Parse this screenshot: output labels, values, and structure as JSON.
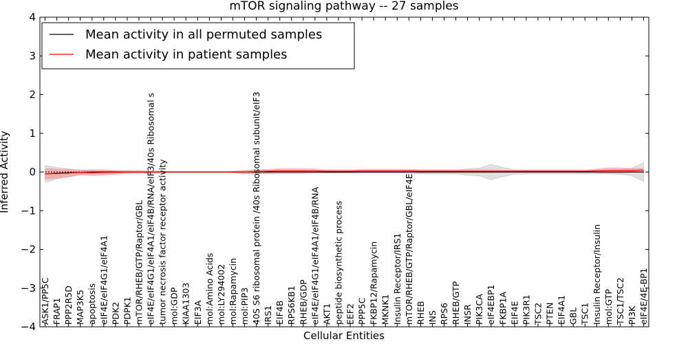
{
  "chart_data": {
    "type": "line",
    "title": "mTOR signaling pathway -- 27 samples",
    "xlabel": "Cellular Entities",
    "ylabel": "Inferred Activity",
    "ylim": [
      -4,
      4
    ],
    "yticks": [
      -4,
      -3,
      -2,
      -1,
      0,
      1,
      2,
      3,
      4
    ],
    "ytick_labels": [
      "−4",
      "−3",
      "−2",
      "−1",
      "0",
      "1",
      "2",
      "3",
      "4"
    ],
    "grid": false,
    "legend_position": "top-left",
    "categories": [
      "ASK1/PP5C",
      "FRAP1",
      "PPP2R5D",
      "MAP3K5",
      "apoptosis",
      "eIF4E/eIF4G1/eIF4A1",
      "PDK2",
      "PDPK1",
      "mTOR/RHEB/GTP/Raptor/GBL",
      "eIF4E/eIF4G1/eIF4A1/eIF4B/RNA/eIF3/40s Ribosomal s",
      "tumor necrosis factor receptor activity",
      "mol:GDP",
      "KIAA1303",
      "EIF3A",
      "mol:Amino Acids",
      "mol:LY294002",
      "mol:Rapamycin",
      "mol:PIP3",
      "40S S6 ribosomal protein /40s Ribosomal subunit/eIF3",
      "IRS1",
      "EIF4B",
      "RPS6KB1",
      "RHEB/GDP",
      "eIF4E/eIF4G1/eIF4A1/eIF4B/RNA",
      "AKT1",
      "peptide biosynthetic process",
      "EEF2",
      "PPP5C",
      "FKBP12/Rapamycin",
      "MKNK1",
      "Insulin Receptor/IRS1",
      "mTOR/RHEB/GTP/Raptor/GBL/eIF4E",
      "RHEB",
      "INS",
      "RPS6",
      "RHEB/GTP",
      "INSR",
      "PIK3CA",
      "eIF4EBP1",
      "FKBP1A",
      "EIF4E",
      "PIK3R1",
      "TSC2",
      "PTEN",
      "EIF4A1",
      "GBL",
      "TSC1",
      "Insulin Receptor/Insulin",
      "mol:GTP",
      "TSC1/TSC2",
      "PI3K",
      "eIF4E/4E-BP1"
    ],
    "series": [
      {
        "name": "Mean activity in all permuted samples",
        "color": "#000000",
        "band_color": "#999999",
        "values": [
          -0.05,
          -0.03,
          -0.02,
          -0.01,
          0,
          0,
          0,
          0,
          0,
          0,
          0,
          0,
          0,
          0,
          0,
          0,
          0,
          0,
          0,
          0,
          0,
          0,
          0,
          0,
          0,
          0,
          0,
          0,
          0,
          0,
          0,
          0,
          0,
          0,
          0,
          0,
          0,
          0,
          0,
          0,
          0,
          0,
          0,
          0,
          0,
          0,
          0,
          0,
          0,
          0,
          0,
          0
        ],
        "band": [
          0.22,
          0.15,
          0.1,
          0.06,
          0.04,
          0.03,
          0.02,
          0.02,
          0.01,
          0.01,
          0.01,
          0.01,
          0.01,
          0.01,
          0.01,
          0.01,
          0.01,
          0.04,
          0.05,
          0.05,
          0.04,
          0.04,
          0.04,
          0.03,
          0.03,
          0.03,
          0.03,
          0.03,
          0.03,
          0.03,
          0.03,
          0.04,
          0.05,
          0.05,
          0.05,
          0.05,
          0.08,
          0.1,
          0.2,
          0.12,
          0.06,
          0.05,
          0.05,
          0.05,
          0.05,
          0.05,
          0.05,
          0.05,
          0.05,
          0.06,
          0.1,
          0.25
        ]
      },
      {
        "name": "Mean activity in patient samples",
        "color": "#ff0000",
        "band_color": "#ff8080",
        "values": [
          -0.05,
          -0.04,
          -0.03,
          -0.01,
          -0.02,
          -0.01,
          -0.01,
          0,
          0,
          0,
          0,
          0,
          0,
          0,
          0,
          0,
          0,
          0,
          0.01,
          0.02,
          0.03,
          0.03,
          0.03,
          0.03,
          0.02,
          0.02,
          0.02,
          0.03,
          0.03,
          0.03,
          0.03,
          0.03,
          0.02,
          0.02,
          0.02,
          0.02,
          0.02,
          0.02,
          0.02,
          0.02,
          0.02,
          0.02,
          0.02,
          0.02,
          0.02,
          0.02,
          0.02,
          0.03,
          0.04,
          0.04,
          0.04,
          0.05
        ],
        "band": [
          0.14,
          0.12,
          0.1,
          0.06,
          0.08,
          0.07,
          0.05,
          0.04,
          0.04,
          0.03,
          0.02,
          0.01,
          0.01,
          0.01,
          0.01,
          0.01,
          0.02,
          0.04,
          0.05,
          0.05,
          0.06,
          0.06,
          0.06,
          0.05,
          0.04,
          0.04,
          0.04,
          0.04,
          0.04,
          0.04,
          0.04,
          0.04,
          0.04,
          0.04,
          0.04,
          0.04,
          0.04,
          0.04,
          0.04,
          0.03,
          0.03,
          0.03,
          0.03,
          0.03,
          0.03,
          0.03,
          0.03,
          0.05,
          0.07,
          0.07,
          0.05,
          0.04
        ]
      }
    ]
  }
}
